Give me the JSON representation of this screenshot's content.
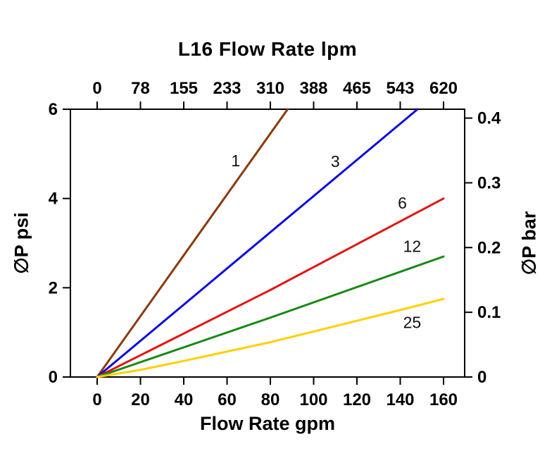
{
  "page": {
    "background": "#ffffff"
  },
  "chart_data": {
    "type": "line",
    "title": "L16 Flow Rate lpm",
    "xlabel": "Flow Rate gpm",
    "ylabel_left": "∅P psi",
    "ylabel_right": "∅P bar",
    "xlim": [
      0,
      160
    ],
    "ylim": [
      0,
      6
    ],
    "grid": false,
    "legend_position": "inline-labels",
    "x_ticks_bottom": [
      0,
      20,
      40,
      60,
      80,
      100,
      120,
      140,
      160
    ],
    "x_ticks_top": [
      0,
      78,
      155,
      233,
      310,
      388,
      465,
      543,
      620
    ],
    "y_ticks_left": [
      0,
      2,
      4,
      6
    ],
    "y_ticks_right": [
      0,
      0.1,
      0.2,
      0.3,
      0.4
    ],
    "psi_per_bar": 14.5038,
    "axis_color": "#000000",
    "series": [
      {
        "name": "1",
        "color": "#8a3a0a",
        "points": [
          [
            0,
            0
          ],
          [
            88,
            6
          ]
        ],
        "label_at": [
          64,
          4.85
        ]
      },
      {
        "name": "3",
        "color": "#0b0bdc",
        "points": [
          [
            0,
            0
          ],
          [
            148,
            6
          ]
        ],
        "label_at": [
          110,
          4.83
        ]
      },
      {
        "name": "6",
        "color": "#e01414",
        "points": [
          [
            0,
            0
          ],
          [
            80,
            1.95
          ],
          [
            160,
            4.0
          ]
        ],
        "label_at": [
          141,
          3.9
        ]
      },
      {
        "name": "12",
        "color": "#138a13",
        "points": [
          [
            0,
            0
          ],
          [
            80,
            1.33
          ],
          [
            160,
            2.7
          ]
        ],
        "label_at": [
          145.5,
          2.93
        ]
      },
      {
        "name": "25",
        "color": "#ffd000",
        "points": [
          [
            0,
            0
          ],
          [
            20,
            0.16
          ],
          [
            40,
            0.36
          ],
          [
            60,
            0.57
          ],
          [
            80,
            0.78
          ],
          [
            100,
            1.02
          ],
          [
            120,
            1.26
          ],
          [
            140,
            1.5
          ],
          [
            160,
            1.75
          ]
        ],
        "label_at": [
          145.5,
          1.22
        ]
      }
    ]
  }
}
